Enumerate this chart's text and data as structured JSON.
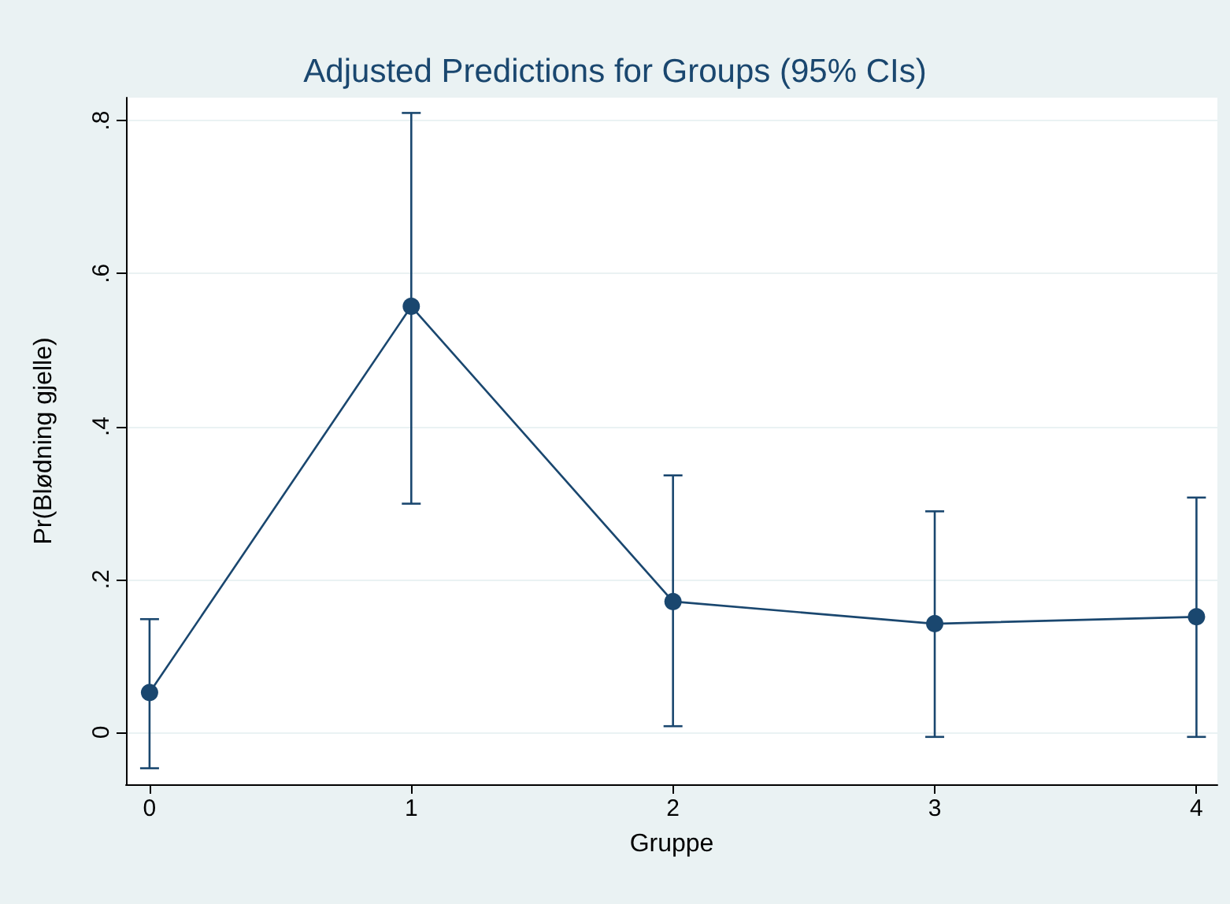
{
  "chart_data": {
    "type": "line",
    "title": "Adjusted Predictions for Groups (95% CIs)",
    "xlabel": "Gruppe",
    "ylabel": "Pr(Blødning gjelle)",
    "x": [
      0,
      1,
      2,
      3,
      4
    ],
    "series": [
      {
        "color": "#1a476f",
        "values": [
          0.052,
          0.557,
          0.171,
          0.142,
          0.151
        ],
        "errors": [
          [
            -0.047,
            0.148
          ],
          [
            0.299,
            0.81
          ],
          [
            0.008,
            0.336
          ],
          [
            -0.006,
            0.289
          ],
          [
            -0.006,
            0.307
          ]
        ]
      }
    ],
    "xlim": [
      -0.09,
      4.08
    ],
    "xticks": [
      0,
      1,
      2,
      3,
      4
    ],
    "ylim": [
      -0.068,
      0.83
    ],
    "yticks": [
      0,
      {
        "value": 0.2,
        "label": ".2"
      },
      {
        "value": 0.4,
        "label": ".4"
      },
      {
        "value": 0.6,
        "label": ".6"
      },
      {
        "value": 0.8,
        "label": ".8"
      }
    ],
    "grid": "y",
    "marker": "circle",
    "line_style": "solid"
  }
}
